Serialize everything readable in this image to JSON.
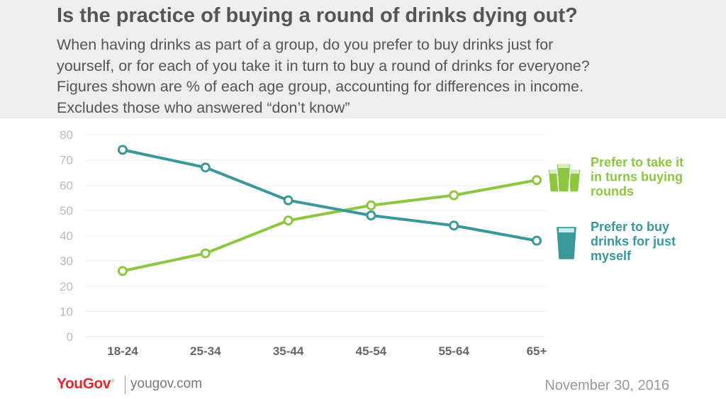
{
  "header": {
    "title": "Is the practice of buying a round of drinks dying out?",
    "subtitle_lines": [
      "When having drinks as part of a group, do you prefer to buy drinks just for",
      "yourself, or for each of you take it in turn to buy a round of drinks for everyone?",
      "Figures shown are % of each age group, accounting for differences in income.",
      "Excludes those who answered “don’t know”"
    ]
  },
  "footer": {
    "logo_text": "YouGov",
    "url": "yougov.com",
    "date": "November 30, 2016"
  },
  "colors": {
    "rounds": "#8dc63f",
    "myself": "#3a9898",
    "gridline": "#eeeeee",
    "tick_label": "#bbbbbb",
    "category_label": "#666666"
  },
  "chart_data": {
    "type": "line",
    "categories": [
      "18-24",
      "25-34",
      "35-44",
      "45-54",
      "55-64",
      "65+"
    ],
    "ylim": [
      0,
      80
    ],
    "yticks": [
      0,
      10,
      20,
      30,
      40,
      50,
      60,
      70,
      80
    ],
    "grid": true,
    "legend_placement": "right",
    "series": [
      {
        "key": "rounds",
        "name_lines": [
          "Prefer to take it",
          "in turns buying",
          "rounds"
        ],
        "values": [
          26,
          33,
          46,
          52,
          56,
          62
        ],
        "icon": "three-pints-icon"
      },
      {
        "key": "myself",
        "name_lines": [
          "Prefer to buy",
          "drinks for just",
          "myself"
        ],
        "values": [
          74,
          67,
          54,
          48,
          44,
          38
        ],
        "icon": "single-pint-icon"
      }
    ]
  }
}
